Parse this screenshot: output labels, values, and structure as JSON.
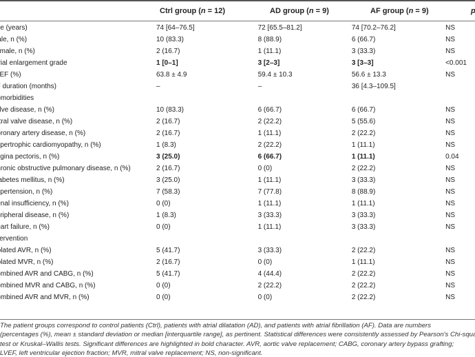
{
  "header": {
    "ctrl": {
      "label": "Ctrl group (",
      "n_var": "n",
      "n_val": " = 12)"
    },
    "ad": {
      "label": "AD group (",
      "n_var": "n",
      "n_val": " = 9)"
    },
    "af": {
      "label": "AF group (",
      "n_var": "n",
      "n_val": " = 9)"
    },
    "extra": "p"
  },
  "rows": [
    {
      "label": "Age (years)",
      "ctrl": "74 [64–76.5]",
      "ad": "72 [65.5–81.2]",
      "af": "74 [70.2–76.2]",
      "p": "NS",
      "bold": false
    },
    {
      "label": "Male, n (%)",
      "ctrl": "10 (83.3)",
      "ad": "8 (88.9)",
      "af": "6 (66.7)",
      "p": "NS",
      "bold": false
    },
    {
      "label": "Female, n (%)",
      "ctrl": "2 (16.7)",
      "ad": "1 (11.1)",
      "af": "3 (33.3)",
      "p": "NS",
      "bold": false
    },
    {
      "label": "Atrial enlargement grade",
      "ctrl": "1 [0–1]",
      "ad": "3 [2–3]",
      "af": "3 [3–3]",
      "p": "<0.001",
      "bold": true
    },
    {
      "label": "LVEF (%)",
      "ctrl": "63.8 ± 4.9",
      "ad": "59.4 ± 10.3",
      "af": "56.6 ± 13.3",
      "p": "NS",
      "bold": false
    },
    {
      "label": "AF duration (months)",
      "ctrl": "–",
      "ad": "–",
      "af": "36 [4.3–109.5]",
      "p": "",
      "bold": false
    },
    {
      "label": "Comorbidities",
      "ctrl": "",
      "ad": "",
      "af": "",
      "p": "",
      "bold": false
    },
    {
      "label": "Valve disease, n (%)",
      "ctrl": "10 (83.3)",
      "ad": "6 (66.7)",
      "af": "6 (66.7)",
      "p": "NS",
      "bold": false
    },
    {
      "label": "Mitral valve disease, n (%)",
      "ctrl": "2 (16.7)",
      "ad": "2 (22.2)",
      "af": "5 (55.6)",
      "p": "NS",
      "bold": false
    },
    {
      "label": "Coronary artery disease, n (%)",
      "ctrl": "2 (16.7)",
      "ad": "1 (11.1)",
      "af": "2 (22.2)",
      "p": "NS",
      "bold": false
    },
    {
      "label": "Hypertrophic cardiomyopathy, n (%)",
      "ctrl": "1 (8.3)",
      "ad": "2 (22.2)",
      "af": "1 (11.1)",
      "p": "NS",
      "bold": false
    },
    {
      "label": "Angina pectoris, n (%)",
      "ctrl": "3 (25.0)",
      "ad": "6 (66.7)",
      "af": "1 (11.1)",
      "p": "0.04",
      "bold": true
    },
    {
      "label": "Chronic obstructive pulmonary disease, n (%)",
      "ctrl": "2 (16.7)",
      "ad": "0 (0)",
      "af": "2 (22.2)",
      "p": "NS",
      "bold": false
    },
    {
      "label": "Diabetes mellitus, n (%)",
      "ctrl": "3 (25.0)",
      "ad": "1 (11.1)",
      "af": "3 (33.3)",
      "p": "NS",
      "bold": false
    },
    {
      "label": "Hypertension, n (%)",
      "ctrl": "7 (58.3)",
      "ad": "7 (77.8)",
      "af": "8 (88.9)",
      "p": "NS",
      "bold": false
    },
    {
      "label": "Renal insufficiency, n (%)",
      "ctrl": "0 (0)",
      "ad": "1 (11.1)",
      "af": "1 (11.1)",
      "p": "NS",
      "bold": false
    },
    {
      "label": "Peripheral disease, n (%)",
      "ctrl": "1 (8.3)",
      "ad": "3 (33.3)",
      "af": "3 (33.3)",
      "p": "NS",
      "bold": false
    },
    {
      "label": "Heart failure, n (%)",
      "ctrl": "0 (0)",
      "ad": "1 (11.1)",
      "af": "3 (33.3)",
      "p": "NS",
      "bold": false
    },
    {
      "label": "Intervention",
      "ctrl": "",
      "ad": "",
      "af": "",
      "p": "",
      "bold": false
    },
    {
      "label": "Isolated AVR, n (%)",
      "ctrl": "5 (41.7)",
      "ad": "3 (33.3)",
      "af": "2 (22.2)",
      "p": "NS",
      "bold": false
    },
    {
      "label": "Isolated MVR, n (%)",
      "ctrl": "2 (16.7)",
      "ad": "0 (0)",
      "af": "1 (11.1)",
      "p": "NS",
      "bold": false
    },
    {
      "label": "Combined AVR and CABG, n (%)",
      "ctrl": "5 (41.7)",
      "ad": "4 (44.4)",
      "af": "2 (22.2)",
      "p": "NS",
      "bold": false
    },
    {
      "label": "Combined MVR and CABG, n (%)",
      "ctrl": "0 (0)",
      "ad": "2 (22.2)",
      "af": "2 (22.2)",
      "p": "NS",
      "bold": false
    },
    {
      "label": "Combined AVR and MVR, n (%)",
      "ctrl": "0 (0)",
      "ad": "0 (0)",
      "af": "2 (22.2)",
      "p": "NS",
      "bold": false
    }
  ],
  "footnote": [
    "The patient groups correspond to control patients (Ctrl), patients with atrial dilatation (AD), and patients with atrial fibrillation (AF). Data are numbers",
    "(percentages (%), mean ± standard deviation or median [interquartile range], as pertinent. Statistical differences were consistently assessed by Pearson's Chi-square",
    "test or Kruskal–Wallis tests. Significant differences are highlighted in bold character. AVR, aortic valve replacement; CABG, coronary artery bypass grafting;",
    "LVEF, left ventricular ejection fraction; MVR, mitral valve replacement; NS, non-significant."
  ]
}
